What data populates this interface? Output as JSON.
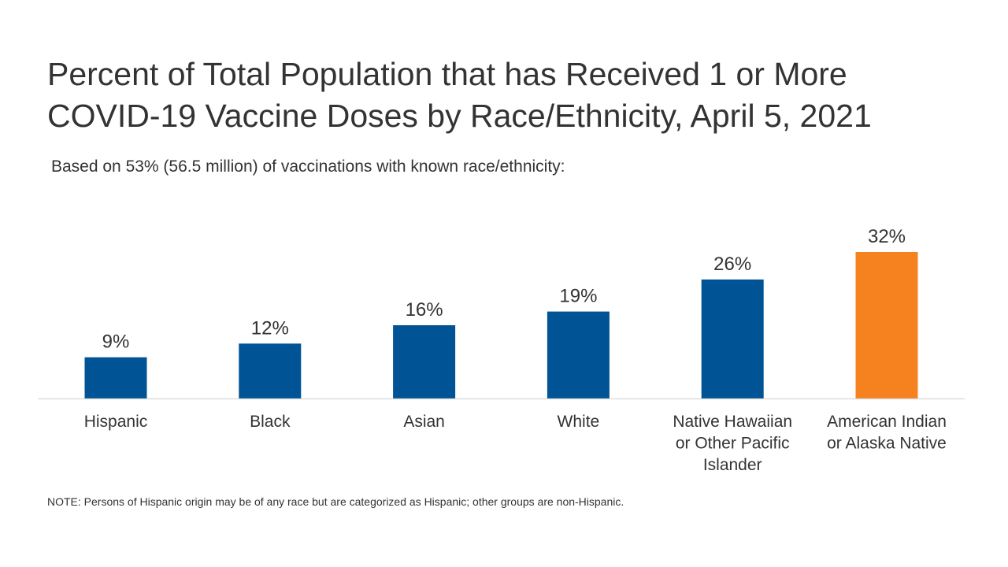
{
  "header": {
    "title_line1": "Percent of Total Population that has Received 1 or More",
    "title_line2": "COVID-19 Vaccine Doses by Race/Ethnicity, April 5, 2021",
    "subtitle": "Based on 53% (56.5 million) of vaccinations with known race/ethnicity:"
  },
  "footer": {
    "note": "NOTE: Persons of Hispanic origin may be of any race but are categorized as Hispanic; other groups are non-Hispanic."
  },
  "colors": {
    "default_bar": "#005496",
    "highlight_bar": "#F5821F",
    "baseline": "#D9D9D9",
    "text": "#333333"
  },
  "chart_data": {
    "type": "bar",
    "title": "Percent of Total Population that has Received 1 or More COVID-19 Vaccine Doses by Race/Ethnicity, April 5, 2021",
    "subtitle": "Based on 53% (56.5 million) of vaccinations with known race/ethnicity:",
    "categories": [
      [
        "Hispanic"
      ],
      [
        "Black"
      ],
      [
        "Asian"
      ],
      [
        "White"
      ],
      [
        "Native Hawaiian",
        "or Other Pacific",
        "Islander"
      ],
      [
        "American Indian",
        "or Alaska Native"
      ]
    ],
    "values": [
      9,
      12,
      16,
      19,
      26,
      32
    ],
    "value_labels": [
      "9%",
      "12%",
      "16%",
      "19%",
      "26%",
      "32%"
    ],
    "highlight": [
      false,
      false,
      false,
      false,
      false,
      true
    ],
    "xlabel": "",
    "ylabel": "",
    "ylim": [
      0,
      32
    ],
    "grid": false,
    "legend": "none"
  }
}
